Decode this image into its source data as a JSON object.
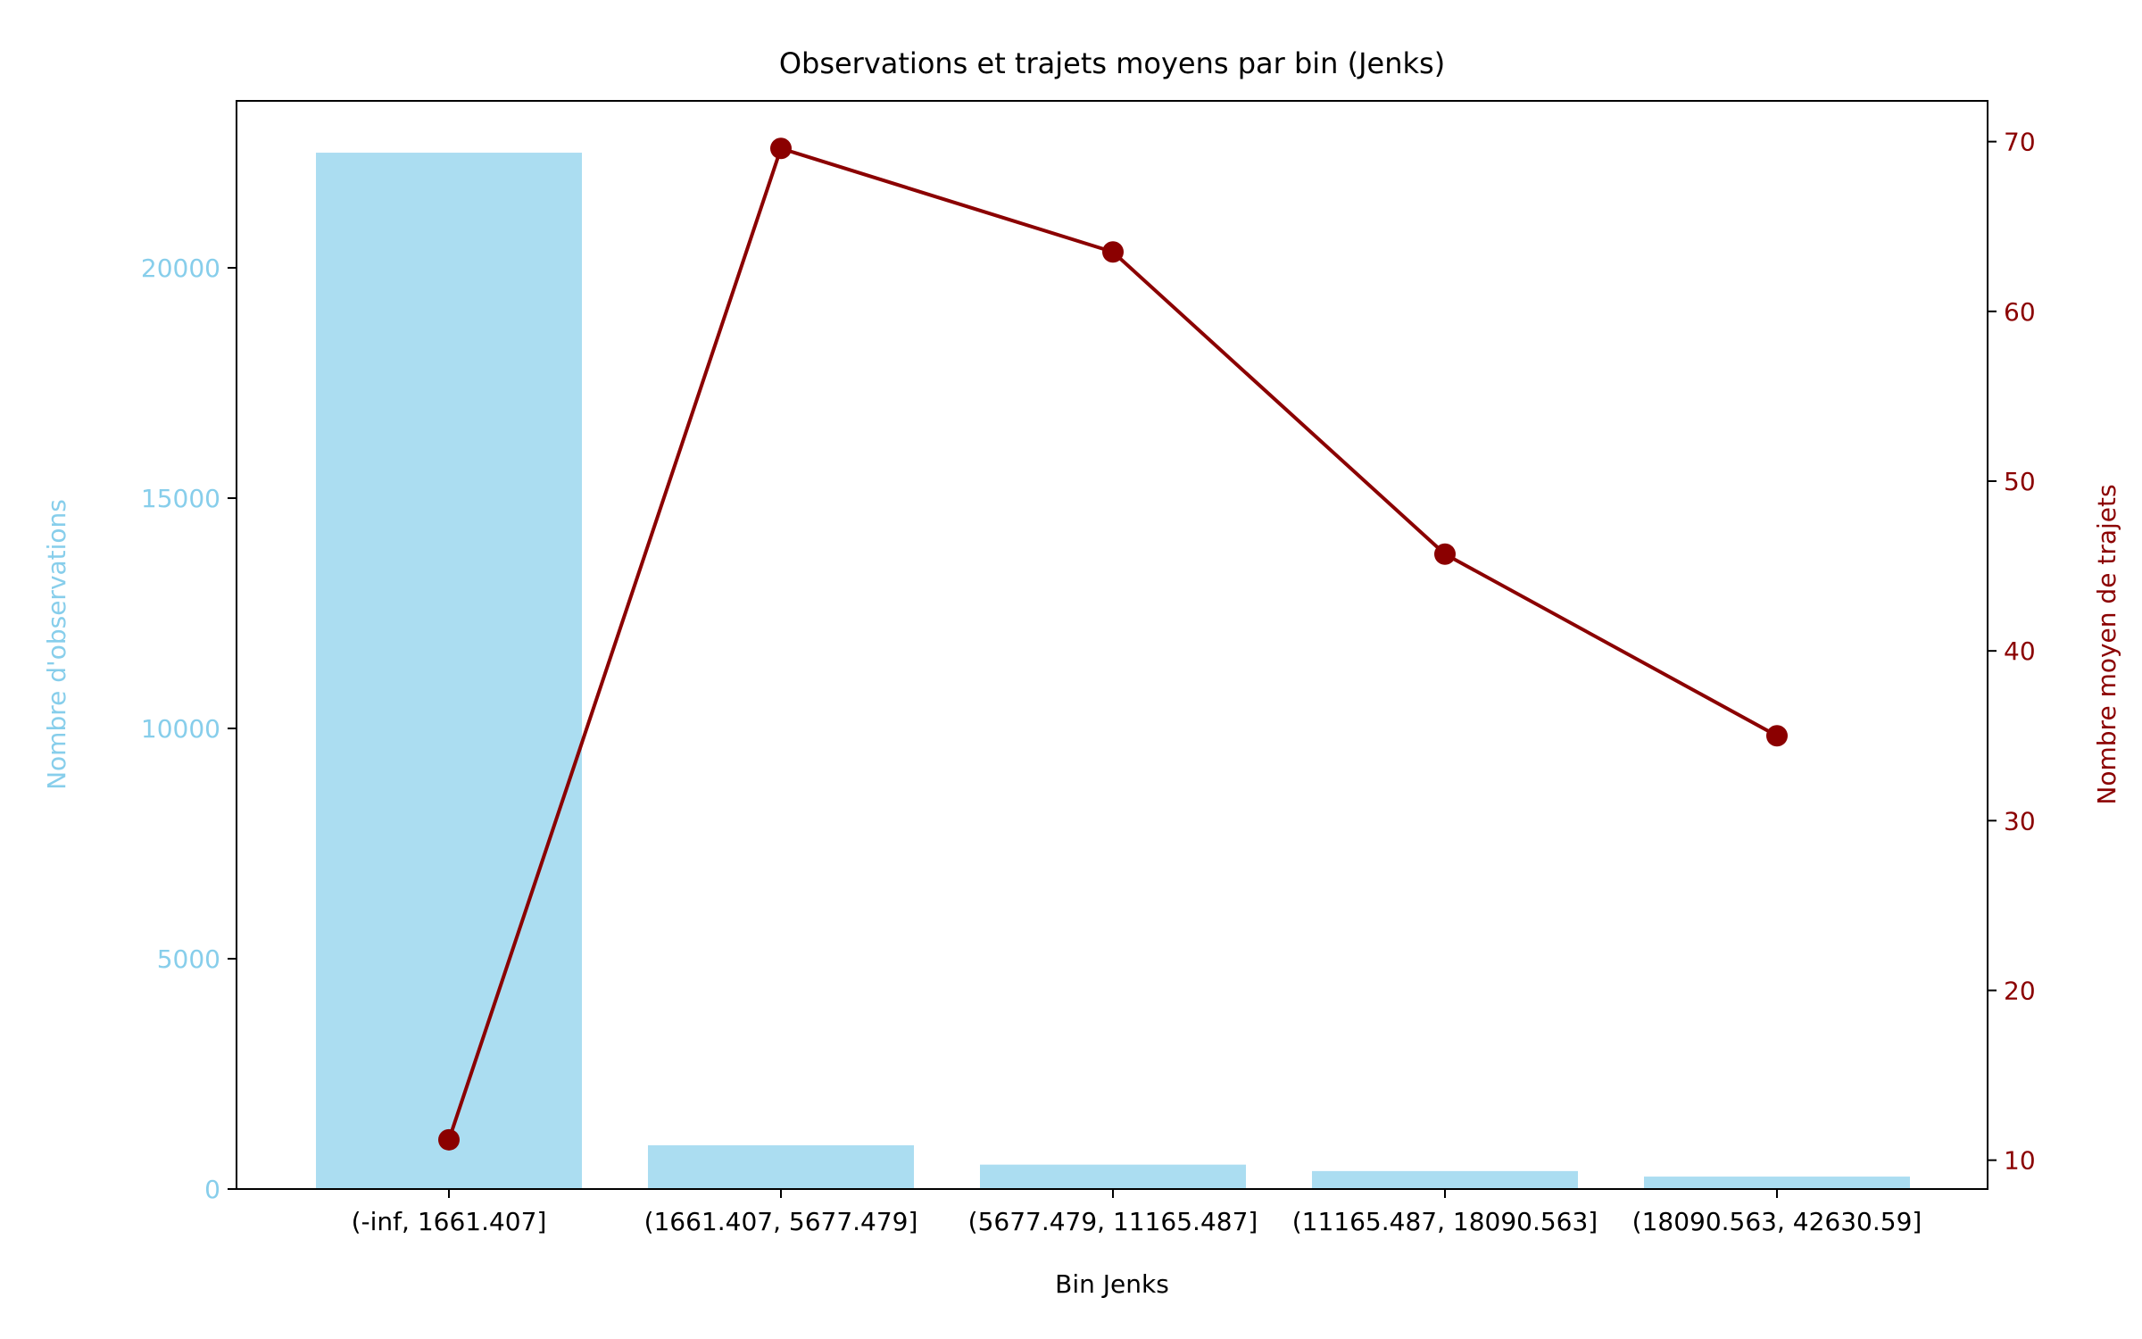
{
  "chart_data": {
    "type": "bar+line",
    "title": "Observations et trajets moyens par bin (Jenks)",
    "xlabel": "Bin Jenks",
    "categories": [
      "(-inf, 1661.407]",
      "(1661.407, 5677.479]",
      "(5677.479, 11165.487]",
      "(11165.487, 18090.563]",
      "(18090.563, 42630.59]"
    ],
    "left_axis": {
      "label": "Nombre d'observations",
      "color": "#87CEEB",
      "ticks": [
        0,
        5000,
        10000,
        15000,
        20000
      ],
      "ylim": [
        0,
        23625
      ]
    },
    "right_axis": {
      "label": "Nombre moyen de trajets",
      "color": "#8B0000",
      "ticks": [
        10,
        20,
        30,
        40,
        50,
        60,
        70
      ],
      "ylim": [
        8.3,
        72.4
      ]
    },
    "series": [
      {
        "kind": "bar",
        "axis": "left",
        "color": "#87CEEB",
        "values": [
          22500,
          950,
          530,
          390,
          270
        ]
      },
      {
        "kind": "line",
        "axis": "right",
        "color": "#8B0000",
        "values": [
          11.2,
          69.6,
          63.5,
          45.7,
          35.0
        ]
      }
    ]
  }
}
